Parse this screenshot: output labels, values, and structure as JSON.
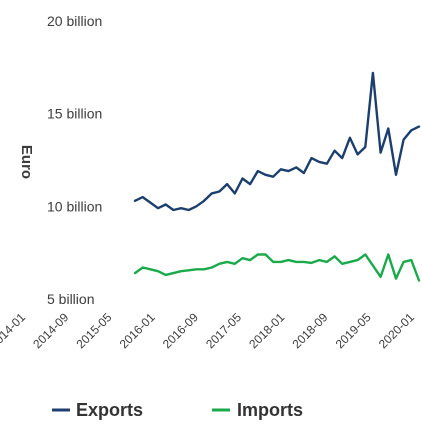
{
  "chart_data": {
    "type": "line",
    "title": "",
    "xlabel": "",
    "ylabel": "Euro",
    "y_ticks": [
      {
        "value": 5000000000,
        "label": "5 billion"
      },
      {
        "value": 10000000000,
        "label": "10 billion"
      },
      {
        "value": 15000000000,
        "label": "15 billion"
      },
      {
        "value": 20000000000,
        "label": "20 billion"
      }
    ],
    "ylim": [
      4500000000,
      21500000000
    ],
    "x_tick_labels": [
      "2014-01",
      "2014-09",
      "2015-05",
      "2016-01",
      "2016-09",
      "2017-05",
      "2018-01",
      "2018-09",
      "2019-05",
      "2020-01"
    ],
    "x": [
      "2014-01",
      "2014-03",
      "2014-05",
      "2014-07",
      "2014-09",
      "2014-11",
      "2015-01",
      "2015-03",
      "2015-05",
      "2015-07",
      "2015-09",
      "2015-11",
      "2016-01",
      "2016-03",
      "2016-05",
      "2016-07",
      "2016-09",
      "2016-11",
      "2017-01",
      "2017-03",
      "2017-05",
      "2017-07",
      "2017-09",
      "2017-11",
      "2018-01",
      "2018-03",
      "2018-05",
      "2018-07",
      "2018-09",
      "2018-11",
      "2019-01",
      "2019-03",
      "2019-05",
      "2019-07",
      "2019-09",
      "2019-11",
      "2020-01",
      "2020-03"
    ],
    "series": [
      {
        "name": "Exports",
        "color": "#1c3f6e",
        "values": [
          10300000000,
          10500000000,
          10200000000,
          9900000000,
          10100000000,
          9800000000,
          9900000000,
          9800000000,
          10000000000,
          10300000000,
          10700000000,
          10800000000,
          11200000000,
          10700000000,
          11500000000,
          11200000000,
          11900000000,
          11700000000,
          11600000000,
          12000000000,
          11900000000,
          12100000000,
          11800000000,
          12600000000,
          12400000000,
          12300000000,
          13000000000,
          12600000000,
          13700000000,
          12800000000,
          13200000000,
          17200000000,
          12900000000,
          14200000000,
          11700000000,
          13600000000,
          14100000000,
          14300000000
        ]
      },
      {
        "name": "Imports",
        "color": "#1aaa4b",
        "values": [
          6400000000,
          6700000000,
          6600000000,
          6500000000,
          6300000000,
          6400000000,
          6500000000,
          6550000000,
          6600000000,
          6600000000,
          6700000000,
          6900000000,
          7000000000,
          6900000000,
          7200000000,
          7100000000,
          7400000000,
          7400000000,
          7000000000,
          7000000000,
          7100000000,
          7000000000,
          7000000000,
          6950000000,
          7100000000,
          7000000000,
          7300000000,
          6900000000,
          7000000000,
          7100000000,
          7400000000,
          6800000000,
          6200000000,
          7400000000,
          6100000000,
          7000000000,
          7100000000,
          6000000000
        ]
      }
    ],
    "legend": {
      "position": "bottom",
      "items": [
        "Exports",
        "Imports"
      ]
    },
    "grid": false
  }
}
